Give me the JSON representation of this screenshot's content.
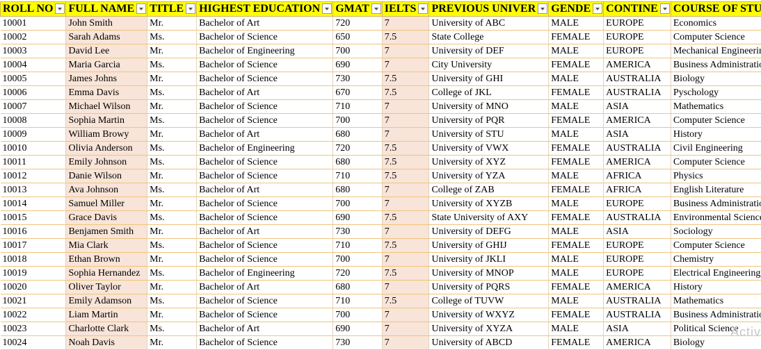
{
  "headers": [
    "ROLL NO",
    "FULL NAME",
    "TITLE",
    "HIGHEST EDUCATION",
    "GMAT",
    "IELTS",
    "PREVIOUS UNIVER",
    "GENDE",
    "CONTINE",
    "COURSE OF STUI"
  ],
  "rows": [
    [
      "10001",
      "John Smith",
      "Mr.",
      "Bachelor of Art",
      "720",
      "7",
      "University of ABC",
      "MALE",
      "EUROPE",
      "Economics"
    ],
    [
      "10002",
      "Sarah Adams",
      "Ms.",
      "Bachelor of Science",
      "650",
      "7.5",
      "State College",
      "FEMALE",
      "EUROPE",
      "Computer Science"
    ],
    [
      "10003",
      "David Lee",
      "Mr.",
      "Bachelor of Engineering",
      "700",
      "7",
      "University of DEF",
      "MALE",
      "EUROPE",
      "Mechanical Engineering"
    ],
    [
      "10004",
      "Maria Garcia",
      "Ms.",
      "Bachelor of Science",
      "690",
      "7",
      "City University",
      "FEMALE",
      "AMERICA",
      "Business Administration"
    ],
    [
      "10005",
      "James Johns",
      "Mr.",
      "Bachelor of Science",
      "730",
      "7.5",
      "University of GHI",
      "MALE",
      "AUSTRALIA",
      "Biology"
    ],
    [
      "10006",
      "Emma Davis",
      "Ms.",
      "Bachelor of Art",
      "670",
      "7.5",
      "College of JKL",
      "FEMALE",
      "AUSTRALIA",
      "Pyschology"
    ],
    [
      "10007",
      "Michael Wilson",
      "Mr.",
      "Bachelor of Science",
      "710",
      "7",
      "University of MNO",
      "MALE",
      "ASIA",
      "Mathematics"
    ],
    [
      "10008",
      "Sophia Martin",
      "Ms.",
      "Bachelor of Science",
      "700",
      "7",
      "University of PQR",
      "FEMALE",
      "AMERICA",
      "Computer Science"
    ],
    [
      "10009",
      "William Browy",
      "Mr.",
      "Bachelor of Art",
      "680",
      "7",
      "University of STU",
      "MALE",
      "ASIA",
      "History"
    ],
    [
      "10010",
      "Olivia Anderson",
      "Ms.",
      "Bachelor of Engineering",
      "720",
      "7.5",
      "University of VWX",
      "FEMALE",
      "AUSTRALIA",
      "Civil Engineering"
    ],
    [
      "10011",
      "Emily Johnson",
      "Ms.",
      "Bachelor of Science",
      "680",
      "7.5",
      "University of XYZ",
      "FEMALE",
      "AMERICA",
      "Computer Science"
    ],
    [
      "10012",
      "Danie Wilson",
      "Mr.",
      "Bachelor of Science",
      "710",
      "7.5",
      "University of YZA",
      "MALE",
      "AFRICA",
      "Physics"
    ],
    [
      "10013",
      "Ava Johnson",
      "Ms.",
      "Bachelor of Art",
      "680",
      "7",
      "College of ZAB",
      "FEMALE",
      "AFRICA",
      "English Literature"
    ],
    [
      "10014",
      "Samuel Miller",
      "Mr.",
      "Bachelor of Science",
      "700",
      "7",
      "University of XYZB",
      "MALE",
      "EUROPE",
      "Business Administration"
    ],
    [
      "10015",
      "Grace Davis",
      "Ms.",
      "Bachelor of Science",
      "690",
      "7.5",
      "State University of AXY",
      "FEMALE",
      "AUSTRALIA",
      "Environmental Science"
    ],
    [
      "10016",
      "Benjamen Smith",
      "Mr.",
      "Bachelor of Art",
      "730",
      "7",
      "University of DEFG",
      "MALE",
      "ASIA",
      "Sociology"
    ],
    [
      "10017",
      "Mia Clark",
      "Ms.",
      "Bachelor of Science",
      "710",
      "7.5",
      "University of GHIJ",
      "FEMALE",
      "EUROPE",
      "Computer Science"
    ],
    [
      "10018",
      "Ethan Brown",
      "Mr.",
      "Bachelor of Science",
      "700",
      "7",
      "University of JKLI",
      "MALE",
      "EUROPE",
      "Chemistry"
    ],
    [
      "10019",
      "Sophia Hernandez",
      "Ms.",
      "Bachelor of Engineering",
      "720",
      "7.5",
      "University of MNOP",
      "MALE",
      "EUROPE",
      "Electrical Engineering"
    ],
    [
      "10020",
      "Oliver Taylor",
      "Mr.",
      "Bachelor of Art",
      "680",
      "7",
      "University of PQRS",
      "FEMALE",
      "AMERICA",
      "History"
    ],
    [
      "10021",
      "Emily Adamson",
      "Ms.",
      "Bachelor of Science",
      "710",
      "7.5",
      "College of TUVW",
      "MALE",
      "AUSTRALIA",
      "Mathematics"
    ],
    [
      "10022",
      "Liam Martin",
      "Mr.",
      "Bachelor of Science",
      "700",
      "7",
      "University of WXYZ",
      "FEMALE",
      "AUSTRALIA",
      "Business Administration"
    ],
    [
      "10023",
      "Charlotte Clark",
      "Ms.",
      "Bachelor of Art",
      "690",
      "7",
      "University of XYZA",
      "MALE",
      "ASIA",
      "Political Science"
    ],
    [
      "10024",
      "Noah Davis",
      "Mr.",
      "Bachelor of Science",
      "730",
      "7",
      "University of ABCD",
      "FEMALE",
      "AMERICA",
      "Biology"
    ]
  ],
  "shaded_columns": [
    1,
    5
  ],
  "watermark": "Activ"
}
